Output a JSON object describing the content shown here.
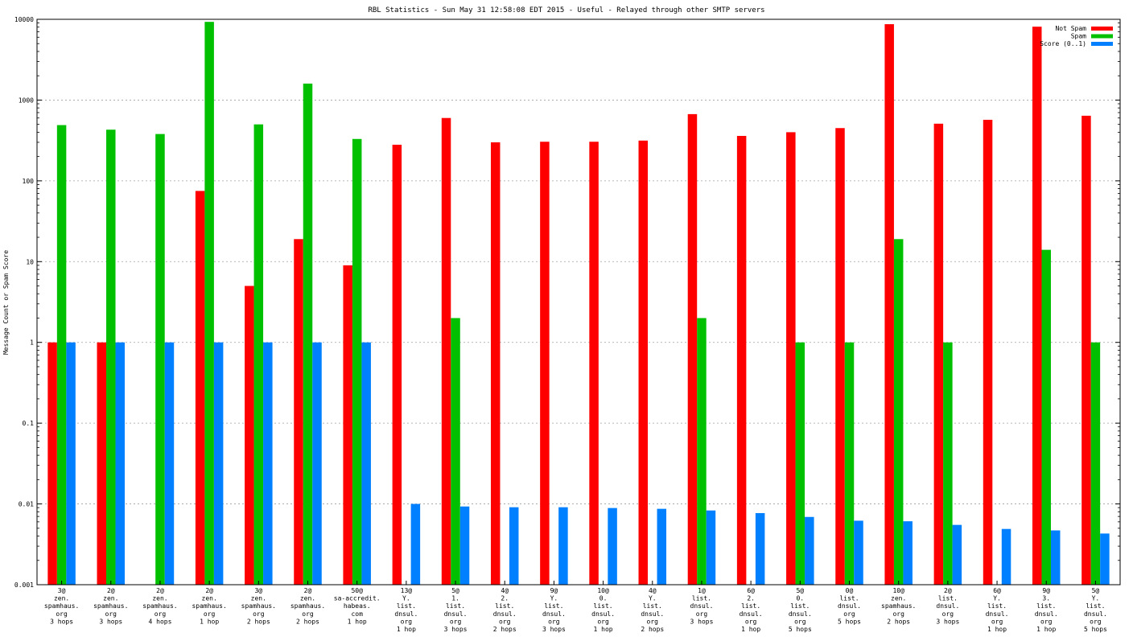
{
  "chart_data": {
    "type": "bar",
    "title": "RBL Statistics - Sun May 31 12:58:08 EDT 2015 - Useful - Relayed through other SMTP servers",
    "ylabel": "Message Count or Spam Score",
    "xlabel": "",
    "yscale": "log",
    "ylim": [
      0.001,
      10000
    ],
    "yticks": [
      "0.001",
      "0.01",
      "0.1",
      "1",
      "10",
      "100",
      "1000",
      "10000"
    ],
    "grid": true,
    "legend_position": "top-right",
    "categories": [
      [
        "3@",
        "zen.",
        "spamhaus.",
        "org",
        "3 hops"
      ],
      [
        "2@",
        "zen.",
        "spamhaus.",
        "org",
        "3 hops"
      ],
      [
        "2@",
        "zen.",
        "spamhaus.",
        "org",
        "4 hops"
      ],
      [
        "2@",
        "zen.",
        "spamhaus.",
        "org",
        "1 hop"
      ],
      [
        "3@",
        "zen.",
        "spamhaus.",
        "org",
        "2 hops"
      ],
      [
        "2@",
        "zen.",
        "spamhaus.",
        "org",
        "2 hops"
      ],
      [
        "50@",
        "sa-accredit.",
        "habeas.",
        "com",
        "1 hop"
      ],
      [
        "13@",
        "Y.",
        "list.",
        "dnsul.",
        "org",
        "1 hop"
      ],
      [
        "5@",
        "1.",
        "list.",
        "dnsul.",
        "org",
        "3 hops"
      ],
      [
        "4@",
        "2.",
        "list.",
        "dnsul.",
        "org",
        "2 hops"
      ],
      [
        "9@",
        "Y.",
        "list.",
        "dnsul.",
        "org",
        "3 hops"
      ],
      [
        "10@",
        "0.",
        "list.",
        "dnsul.",
        "org",
        "1 hop"
      ],
      [
        "4@",
        "Y.",
        "list.",
        "dnsul.",
        "org",
        "2 hops"
      ],
      [
        "1@",
        "list.",
        "dnsul.",
        "org",
        "3 hops"
      ],
      [
        "6@",
        "2.",
        "list.",
        "dnsul.",
        "org",
        "1 hop"
      ],
      [
        "5@",
        "0.",
        "list.",
        "dnsul.",
        "org",
        "5 hops"
      ],
      [
        "0@",
        "list.",
        "dnsul.",
        "org",
        "5 hops"
      ],
      [
        "10@",
        "zen.",
        "spamhaus.",
        "org",
        "2 hops"
      ],
      [
        "2@",
        "list.",
        "dnsul.",
        "org",
        "3 hops"
      ],
      [
        "6@",
        "Y.",
        "list.",
        "dnsul.",
        "org",
        "1 hop"
      ],
      [
        "9@",
        "3.",
        "list.",
        "dnsul.",
        "org",
        "1 hop"
      ],
      [
        "5@",
        "Y.",
        "list.",
        "dnsul.",
        "org",
        "5 hops"
      ]
    ],
    "series": [
      {
        "name": "Not Spam",
        "color": "#ff0000",
        "values": [
          1,
          1,
          null,
          75,
          5,
          19,
          9,
          280,
          600,
          300,
          305,
          305,
          315,
          670,
          360,
          400,
          450,
          8700,
          510,
          570,
          8100,
          640
        ]
      },
      {
        "name": "Spam",
        "color": "#00c000",
        "values": [
          490,
          430,
          380,
          9300,
          500,
          1600,
          330,
          null,
          2,
          null,
          null,
          null,
          null,
          2,
          null,
          1,
          1,
          19,
          1,
          null,
          14,
          1
        ]
      },
      {
        "name": "Score (0..1)",
        "color": "#0080ff",
        "values": [
          1,
          1,
          1,
          1,
          1,
          1,
          1,
          0.01,
          0.0093,
          0.0091,
          0.0091,
          0.0089,
          0.0087,
          0.0083,
          0.0077,
          0.0069,
          0.0062,
          0.0061,
          0.0055,
          0.0049,
          0.0047,
          0.0043
        ]
      }
    ]
  }
}
